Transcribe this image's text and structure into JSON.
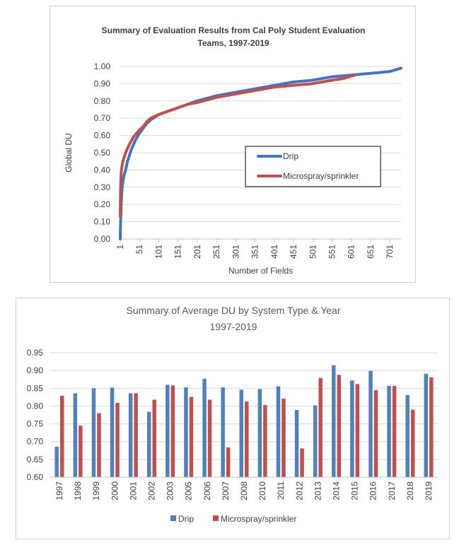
{
  "chart_data": [
    {
      "type": "line",
      "title": "Summary of Evaluation Results from Cal Poly Student Evaluation Teams, 1997-2019",
      "title_lines": [
        "Summary of Evaluation Results from Cal Poly Student Evaluation",
        "Teams, 1997-2019"
      ],
      "xlabel": "Number of Fields",
      "ylabel": "Global DU",
      "xlim": [
        1,
        730
      ],
      "ylim": [
        0,
        1
      ],
      "x_ticks": [
        1,
        51,
        101,
        151,
        201,
        251,
        301,
        351,
        401,
        451,
        501,
        551,
        601,
        651,
        701
      ],
      "y_ticks": [
        "0.00",
        "0.10",
        "0.20",
        "0.30",
        "0.40",
        "0.50",
        "0.60",
        "0.70",
        "0.80",
        "0.90",
        "1.00"
      ],
      "grid": "horizontal",
      "legend_position": "center-right",
      "series": [
        {
          "name": "Drip",
          "color": "#4472C4",
          "points": [
            [
              1,
              0.0
            ],
            [
              2,
              0.1
            ],
            [
              4,
              0.22
            ],
            [
              6,
              0.3
            ],
            [
              10,
              0.36
            ],
            [
              15,
              0.4
            ],
            [
              20,
              0.45
            ],
            [
              30,
              0.52
            ],
            [
              40,
              0.57
            ],
            [
              50,
              0.61
            ],
            [
              60,
              0.64
            ],
            [
              70,
              0.67
            ],
            [
              80,
              0.69
            ],
            [
              100,
              0.72
            ],
            [
              125,
              0.74
            ],
            [
              150,
              0.76
            ],
            [
              175,
              0.78
            ],
            [
              200,
              0.8
            ],
            [
              250,
              0.83
            ],
            [
              300,
              0.85
            ],
            [
              350,
              0.87
            ],
            [
              400,
              0.89
            ],
            [
              450,
              0.91
            ],
            [
              500,
              0.92
            ],
            [
              550,
              0.94
            ],
            [
              600,
              0.95
            ],
            [
              650,
              0.96
            ],
            [
              700,
              0.97
            ],
            [
              730,
              0.99
            ]
          ]
        },
        {
          "name": "Microspray/sprinkler",
          "color": "#C0504D",
          "points": [
            [
              1,
              0.13
            ],
            [
              2,
              0.3
            ],
            [
              4,
              0.4
            ],
            [
              8,
              0.45
            ],
            [
              15,
              0.5
            ],
            [
              25,
              0.55
            ],
            [
              35,
              0.59
            ],
            [
              50,
              0.63
            ],
            [
              60,
              0.65
            ],
            [
              70,
              0.68
            ],
            [
              80,
              0.7
            ],
            [
              100,
              0.72
            ],
            [
              125,
              0.74
            ],
            [
              150,
              0.76
            ],
            [
              175,
              0.78
            ],
            [
              200,
              0.79
            ],
            [
              250,
              0.82
            ],
            [
              300,
              0.84
            ],
            [
              350,
              0.86
            ],
            [
              400,
              0.88
            ],
            [
              450,
              0.89
            ],
            [
              500,
              0.9
            ],
            [
              550,
              0.92
            ],
            [
              580,
              0.93
            ],
            [
              610,
              0.95
            ]
          ]
        }
      ]
    },
    {
      "type": "bar",
      "title": "Summary of Average DU by System Type & Year 1997-2019",
      "title_lines": [
        "Summary of Average DU by System Type & Year",
        "1997-2019"
      ],
      "xlabel": "",
      "ylabel": "",
      "ylim": [
        0.6,
        0.95
      ],
      "y_ticks": [
        "0.60",
        "0.65",
        "0.70",
        "0.75",
        "0.80",
        "0.85",
        "0.90",
        "0.95"
      ],
      "grid": "horizontal",
      "legend_position": "bottom",
      "categories": [
        "1997",
        "1998",
        "1999",
        "2000",
        "2001",
        "2002",
        "2003",
        "2005",
        "2006",
        "2007",
        "2008",
        "2010",
        "2011",
        "2012",
        "2013",
        "2014",
        "2015",
        "2016",
        "2017",
        "2018",
        "2019"
      ],
      "series": [
        {
          "name": "Drip",
          "color": "#4F81BD",
          "values": [
            0.686,
            0.836,
            0.85,
            0.852,
            0.836,
            0.784,
            0.86,
            0.853,
            0.877,
            0.853,
            0.846,
            0.848,
            0.856,
            0.789,
            0.802,
            0.915,
            0.872,
            0.899,
            0.857,
            0.831,
            0.891
          ]
        },
        {
          "name": "Microspray/sprinkler",
          "color": "#C0504D",
          "values": [
            0.829,
            0.745,
            0.78,
            0.809,
            0.836,
            0.818,
            0.858,
            0.826,
            0.818,
            0.684,
            0.813,
            0.803,
            0.821,
            0.681,
            0.879,
            0.888,
            0.862,
            0.845,
            0.857,
            0.79,
            0.881
          ]
        }
      ]
    }
  ]
}
